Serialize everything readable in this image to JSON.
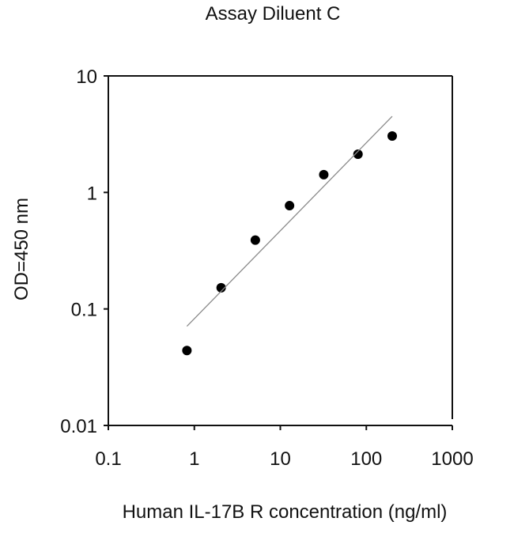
{
  "chart_data": {
    "type": "scatter",
    "title": "Assay Diluent C",
    "xlabel": "Human IL-17B R concentration (ng/ml)",
    "ylabel": "OD=450 nm",
    "xscale": "log",
    "yscale": "log",
    "xlim": [
      0.1,
      1000
    ],
    "ylim": [
      0.01,
      10
    ],
    "xticks": [
      "0.1",
      "1",
      "10",
      "100",
      "1000"
    ],
    "yticks": [
      "0.01",
      "0.1",
      "1",
      "10"
    ],
    "grid": false,
    "legend": null,
    "series": [
      {
        "name": "Standard points",
        "type": "scatter",
        "x": [
          0.82,
          2.05,
          5.12,
          12.8,
          32,
          80,
          200
        ],
        "y": [
          0.044,
          0.152,
          0.39,
          0.77,
          1.42,
          2.13,
          3.05
        ]
      },
      {
        "name": "Fit line",
        "type": "line",
        "x": [
          0.82,
          200
        ],
        "y": [
          0.071,
          4.5
        ]
      }
    ]
  },
  "colors": {
    "points": "#000000",
    "fit_line": "#8a8a8a",
    "axes": "#111111"
  }
}
